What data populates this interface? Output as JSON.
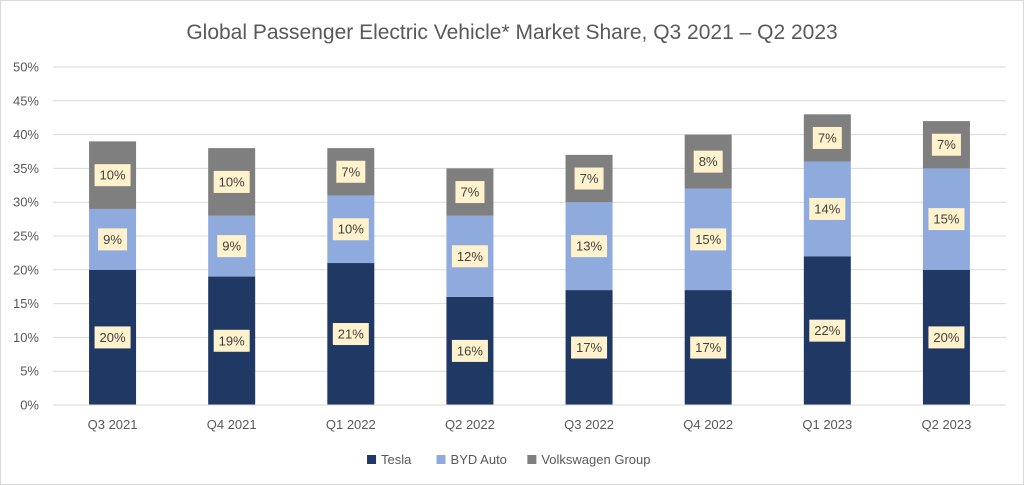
{
  "chart_data": {
    "type": "bar",
    "stacked": true,
    "title": "Global Passenger Electric Vehicle* Market Share, Q3 2021 – Q2 2023",
    "xlabel": "",
    "ylabel": "",
    "categories": [
      "Q3 2021",
      "Q4 2021",
      "Q1 2022",
      "Q2 2022",
      "Q3 2022",
      "Q4 2022",
      "Q1 2023",
      "Q2 2023"
    ],
    "series": [
      {
        "name": "Tesla",
        "color": "#203864",
        "values": [
          20,
          19,
          21,
          16,
          17,
          17,
          22,
          20
        ],
        "labels": [
          "20%",
          "19%",
          "21%",
          "16%",
          "17%",
          "17%",
          "22%",
          "20%"
        ]
      },
      {
        "name": "BYD Auto",
        "color": "#8faadc",
        "values": [
          9,
          9,
          10,
          12,
          13,
          15,
          14,
          15
        ],
        "labels": [
          "9%",
          "9%",
          "10%",
          "12%",
          "13%",
          "15%",
          "14%",
          "15%"
        ]
      },
      {
        "name": "Volkswagen Group",
        "color": "#7f7f7f",
        "values": [
          10,
          10,
          7,
          7,
          7,
          8,
          7,
          7
        ],
        "labels": [
          "10%",
          "10%",
          "7%",
          "7%",
          "7%",
          "8%",
          "7%",
          "7%"
        ]
      }
    ],
    "ylim": [
      0,
      50
    ],
    "yticks": [
      "0%",
      "5%",
      "10%",
      "15%",
      "20%",
      "25%",
      "30%",
      "35%",
      "40%",
      "45%",
      "50%"
    ],
    "grid": true,
    "legend_position": "bottom",
    "data_label_fill": "#fff2cc",
    "gridline_color": "#d9d9d9"
  }
}
